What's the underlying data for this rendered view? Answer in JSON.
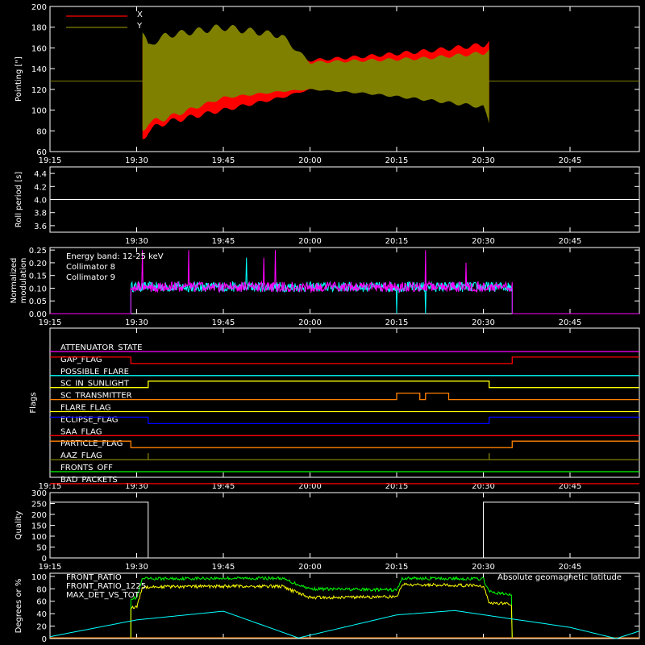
{
  "time_ticks": [
    "19:15",
    "19:30",
    "19:45",
    "20:00",
    "20:15",
    "20:30",
    "20:45"
  ],
  "time_range": [
    "19:15",
    "20:57"
  ],
  "colors": {
    "background": "#000000",
    "axes": "#ffffff",
    "red": "#ff0000",
    "olive": "#808000",
    "cyan": "#00ffff",
    "magenta": "#ff00ff",
    "green": "#00ff00",
    "yellow": "#ffff00",
    "orange": "#ff8000",
    "blue": "#0000ff",
    "white": "#ffffff"
  },
  "chart_data": [
    {
      "id": "pointing",
      "type": "area",
      "ylabel": "Pointing [\"]",
      "ylim": [
        60,
        200
      ],
      "yticks": [
        60,
        80,
        100,
        120,
        140,
        160,
        180,
        200
      ],
      "legend": [
        {
          "name": "X",
          "color": "#ff0000"
        },
        {
          "name": "Y",
          "color": "#808000"
        }
      ],
      "constant_line": {
        "value": 128,
        "color": "#808000"
      },
      "series": [
        {
          "name": "X",
          "color": "#ff0000",
          "x": [
            "19:31",
            "19:32",
            "19:35",
            "19:45",
            "19:55",
            "20:00",
            "20:10",
            "20:20",
            "20:30",
            "20:31"
          ],
          "upper": [
            170,
            156,
            150,
            159,
            155,
            148,
            152,
            157,
            163,
            166
          ],
          "lower": [
            72,
            80,
            88,
            100,
            112,
            120,
            117,
            112,
            104,
            98
          ]
        },
        {
          "name": "Y",
          "color": "#808000",
          "x": [
            "19:31",
            "19:32",
            "19:35",
            "19:45",
            "19:55",
            "20:00",
            "20:10",
            "20:20",
            "20:30",
            "20:31"
          ],
          "upper": [
            175,
            162,
            172,
            180,
            172,
            146,
            148,
            150,
            155,
            158
          ],
          "lower": [
            80,
            88,
            92,
            112,
            118,
            120,
            116,
            110,
            103,
            88
          ]
        }
      ]
    },
    {
      "id": "roll-period",
      "type": "line",
      "ylabel": "Roll period [s]",
      "ylim": [
        3.5,
        4.5
      ],
      "yticks": [
        "3.6",
        "3.8",
        "4.0",
        "4.2",
        "4.4"
      ],
      "series": [
        {
          "color": "#ffffff",
          "x": [
            "19:15",
            "20:57"
          ],
          "y": [
            4.0,
            4.0
          ]
        }
      ]
    },
    {
      "id": "modulation",
      "type": "line",
      "ylabel": [
        "Normalized",
        "modulation"
      ],
      "ylim": [
        0,
        0.26
      ],
      "yticks": [
        "0.00",
        "0.05",
        "0.10",
        "0.15",
        "0.20",
        "0.25"
      ],
      "annotation": "Energy band: 12-25 keV",
      "legend": [
        {
          "name": "Collimator 8",
          "color": "#00ffff"
        },
        {
          "name": "Collimator 9",
          "color": "#ff00ff"
        }
      ],
      "active_range": [
        "19:29",
        "20:35"
      ],
      "series": [
        {
          "name": "Collimator 8",
          "color": "#00ffff",
          "mean": 0.105,
          "noise": 0.02,
          "spikes": [
            {
              "x": "19:49",
              "y": 0.22
            },
            {
              "x": "20:15",
              "y": 0.0
            },
            {
              "x": "20:20",
              "y": 0.0
            }
          ]
        },
        {
          "name": "Collimator 9",
          "color": "#ff00ff",
          "mean": 0.105,
          "noise": 0.02,
          "spikes": [
            {
              "x": "19:31",
              "y": 0.25
            },
            {
              "x": "19:39",
              "y": 0.25
            },
            {
              "x": "19:52",
              "y": 0.22
            },
            {
              "x": "19:54",
              "y": 0.25
            },
            {
              "x": "20:20",
              "y": 0.25
            },
            {
              "x": "20:27",
              "y": 0.2
            }
          ]
        }
      ]
    },
    {
      "id": "flags",
      "type": "line",
      "ylabel": "Flags",
      "flags": [
        {
          "label": "ATTENUATOR_STATE",
          "color": "#ff00ff",
          "segments": [
            [
              "19:15",
              "20:57",
              0
            ]
          ]
        },
        {
          "label": "GAP_FLAG",
          "color": "#ff0000",
          "segments": [
            [
              "19:15",
              "19:29",
              1
            ],
            [
              "19:29",
              "20:35",
              0
            ],
            [
              "20:35",
              "20:57",
              1
            ]
          ]
        },
        {
          "label": "POSSIBLE_FLARE",
          "color": "#00ffff",
          "segments": [
            [
              "19:15",
              "20:57",
              0
            ]
          ]
        },
        {
          "label": "SC_IN_SUNLIGHT",
          "color": "#ffff00",
          "segments": [
            [
              "19:15",
              "19:32",
              0
            ],
            [
              "19:32",
              "20:31",
              1
            ],
            [
              "20:31",
              "20:57",
              0
            ]
          ]
        },
        {
          "label": "SC_TRANSMITTER",
          "color": "#ff8000",
          "segments": [
            [
              "19:15",
              "20:15",
              0
            ],
            [
              "20:15",
              "20:19",
              1
            ],
            [
              "20:19",
              "20:20",
              0
            ],
            [
              "20:20",
              "20:24",
              1
            ],
            [
              "20:24",
              "20:57",
              0
            ]
          ]
        },
        {
          "label": "FLARE_FLAG",
          "color": "#ffff00",
          "segments": [
            [
              "19:15",
              "20:57",
              0
            ]
          ]
        },
        {
          "label": "ECLIPSE_FLAG",
          "color": "#0000ff",
          "segments": [
            [
              "19:15",
              "19:32",
              1
            ],
            [
              "19:32",
              "20:31",
              0
            ],
            [
              "20:31",
              "20:57",
              1
            ]
          ]
        },
        {
          "label": "SAA_FLAG",
          "color": "#ff0000",
          "segments": [
            [
              "19:15",
              "20:57",
              0
            ]
          ]
        },
        {
          "label": "PARTICLE_FLAG",
          "color": "#ff8000",
          "segments": [
            [
              "19:15",
              "19:29",
              1
            ],
            [
              "19:29",
              "20:35",
              0
            ],
            [
              "20:35",
              "20:57",
              1
            ]
          ]
        },
        {
          "label": "AAZ_FLAG",
          "color": "#808000",
          "segments": [
            [
              "19:15",
              "19:32",
              0
            ],
            [
              "19:32",
              "19:32",
              1
            ],
            [
              "19:32",
              "20:31",
              0
            ],
            [
              "20:31",
              "20:31",
              1
            ],
            [
              "20:31",
              "20:57",
              0
            ]
          ]
        },
        {
          "label": "FRONTS_OFF",
          "color": "#00ff00",
          "segments": [
            [
              "19:15",
              "20:57",
              0
            ]
          ]
        },
        {
          "label": "BAD_PACKETS",
          "color": "#ff0000",
          "segments": [
            [
              "19:15",
              "20:57",
              0
            ]
          ]
        }
      ]
    },
    {
      "id": "quality",
      "type": "line",
      "ylabel": "Quality",
      "ylim": [
        0,
        300
      ],
      "yticks": [
        0,
        50,
        100,
        150,
        200,
        250,
        300
      ],
      "series": [
        {
          "color": "#ffffff",
          "x": [
            "19:15",
            "19:32",
            "19:32",
            "20:30",
            "20:30",
            "20:57"
          ],
          "y": [
            256,
            256,
            0,
            0,
            256,
            256
          ]
        }
      ]
    },
    {
      "id": "ratios",
      "type": "line",
      "ylabel": "Degrees or %",
      "ylim": [
        0,
        105
      ],
      "yticks": [
        0,
        20,
        40,
        60,
        80,
        100
      ],
      "legend": [
        {
          "name": "FRONT_RATIO",
          "color": "#ffff00"
        },
        {
          "name": "FRONT_RATIO_1225",
          "color": "#00ff00"
        },
        {
          "name": "MAX_DET_VS_TOT",
          "color": "#ff8000"
        }
      ],
      "right_legend": {
        "name": "Absolute geomagnetic latitude",
        "color": "#00ffff"
      },
      "series": [
        {
          "name": "FRONT_RATIO_1225",
          "color": "#00ff00",
          "x": [
            "19:29",
            "19:30",
            "19:31",
            "19:45",
            "19:55",
            "20:00",
            "20:15",
            "20:16",
            "20:30",
            "20:31",
            "20:35"
          ],
          "y": [
            65,
            65,
            96,
            97,
            97,
            80,
            78,
            97,
            96,
            75,
            70
          ]
        },
        {
          "name": "FRONT_RATIO",
          "color": "#ffff00",
          "x": [
            "19:29",
            "19:30",
            "19:31",
            "19:45",
            "19:55",
            "20:00",
            "20:15",
            "20:16",
            "20:30",
            "20:31",
            "20:35"
          ],
          "y": [
            50,
            50,
            83,
            84,
            84,
            66,
            67,
            87,
            85,
            58,
            55
          ]
        },
        {
          "name": "MAX_DET_VS_TOT",
          "color": "#ff8000",
          "x": [
            "19:15",
            "20:57"
          ],
          "y": [
            0,
            0
          ]
        },
        {
          "name": "Absolute geomagnetic latitude",
          "color": "#00ffff",
          "x": [
            "19:15",
            "19:30",
            "19:45",
            "19:58",
            "20:15",
            "20:25",
            "20:45",
            "20:53",
            "20:57"
          ],
          "y": [
            3,
            30,
            44,
            1,
            38,
            45,
            18,
            0,
            12
          ]
        }
      ]
    }
  ]
}
